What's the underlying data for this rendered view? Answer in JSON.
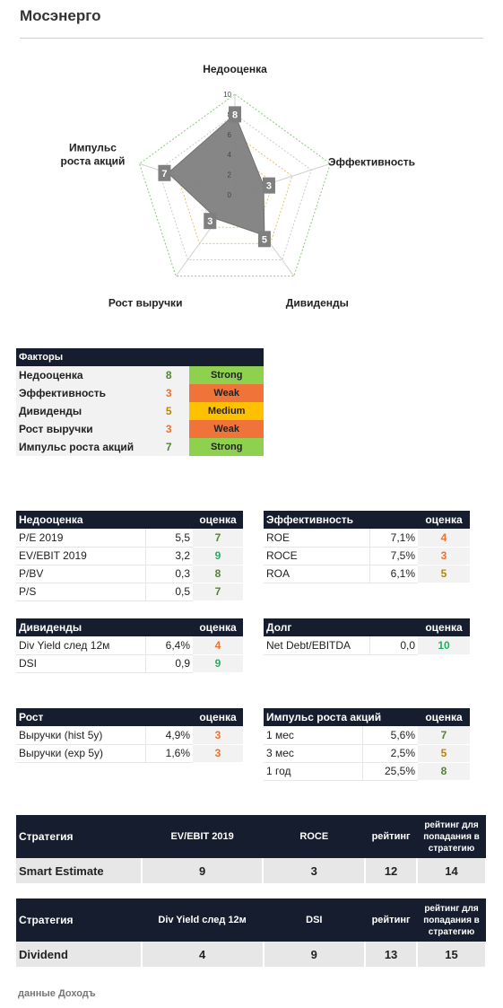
{
  "page": {
    "title": "Мосэнерго",
    "footer": "данные Доходъ"
  },
  "radar": {
    "axes": [
      "Недооценка",
      "Эффективность",
      "Дивиденды",
      "Рост выручки",
      "Импульс роста акций"
    ],
    "values": [
      8,
      3,
      5,
      3,
      7
    ],
    "ticks": [
      0,
      2,
      4,
      6,
      8,
      10
    ],
    "max": 10,
    "label_lines": [
      [
        "Недооценка"
      ],
      [
        "Эффективность"
      ],
      [
        "Дивиденды"
      ],
      [
        "Рост выручки"
      ],
      [
        "Импульс",
        "роста акций"
      ]
    ],
    "colors": {
      "fill": "#7f7f7f",
      "marker": "#7f7f7f"
    }
  },
  "factors": {
    "header": "Факторы",
    "rows": [
      {
        "name": "Недооценка",
        "score": "8",
        "rating": "Strong"
      },
      {
        "name": "Эффективность",
        "score": "3",
        "rating": "Weak"
      },
      {
        "name": "Дивиденды",
        "score": "5",
        "rating": "Medium"
      },
      {
        "name": "Рост выручки",
        "score": "3",
        "rating": "Weak"
      },
      {
        "name": "Импульс роста акций",
        "score": "7",
        "rating": "Strong"
      }
    ]
  },
  "undervaluation": {
    "header": "Недооценка",
    "score_header": "оценка",
    "rows": [
      {
        "name": "P/E 2019",
        "value": "5,5",
        "score": "7"
      },
      {
        "name": "EV/EBIT 2019",
        "value": "3,2",
        "score": "9"
      },
      {
        "name": "P/BV",
        "value": "0,3",
        "score": "8"
      },
      {
        "name": "P/S",
        "value": "0,5",
        "score": "7"
      }
    ]
  },
  "efficiency": {
    "header": "Эффективность",
    "score_header": "оценка",
    "rows": [
      {
        "name": "ROE",
        "value": "7,1%",
        "score": "4"
      },
      {
        "name": "ROCE",
        "value": "7,5%",
        "score": "3"
      },
      {
        "name": "ROA",
        "value": "6,1%",
        "score": "5"
      }
    ]
  },
  "dividends": {
    "header": "Дивиденды",
    "score_header": "оценка",
    "rows": [
      {
        "name": "Div Yield след 12м",
        "value": "6,4%",
        "score": "4"
      },
      {
        "name": "DSI",
        "value": "0,9",
        "score": "9"
      }
    ]
  },
  "debt": {
    "header": "Долг",
    "score_header": "оценка",
    "rows": [
      {
        "name": "Net Debt/EBITDA",
        "value": "0,0",
        "score": "10"
      }
    ]
  },
  "growth": {
    "header": "Рост",
    "score_header": "оценка",
    "rows": [
      {
        "name": "Выручки (hist 5y)",
        "value": "4,9%",
        "score": "3"
      },
      {
        "name": "Выручки (exp 5y)",
        "value": "1,6%",
        "score": "3"
      }
    ]
  },
  "momentum": {
    "header": "Импульс роста акций",
    "score_header": "оценка",
    "rows": [
      {
        "name": "1 мес",
        "value": "5,6%",
        "score": "7"
      },
      {
        "name": "3 мес",
        "value": "2,5%",
        "score": "5"
      },
      {
        "name": "1 год",
        "value": "25,5%",
        "score": "8"
      }
    ]
  },
  "strategy1": {
    "h_strategy": "Стратегия",
    "h_m1": "EV/EBIT 2019",
    "h_m2": "ROCE",
    "h_rating": "рейтинг",
    "h_threshold": "рейтинг для попадания в стратегию",
    "name": "Smart Estimate",
    "m1": "9",
    "m2": "3",
    "rating": "12",
    "threshold": "14"
  },
  "strategy2": {
    "h_strategy": "Стратегия",
    "h_m1": "Div Yield след 12м",
    "h_m2": "DSI",
    "h_rating": "рейтинг",
    "h_threshold": "рейтинг для попадания в стратегию",
    "name": "Dividend",
    "m1": "4",
    "m2": "9",
    "rating": "13",
    "threshold": "15"
  }
}
